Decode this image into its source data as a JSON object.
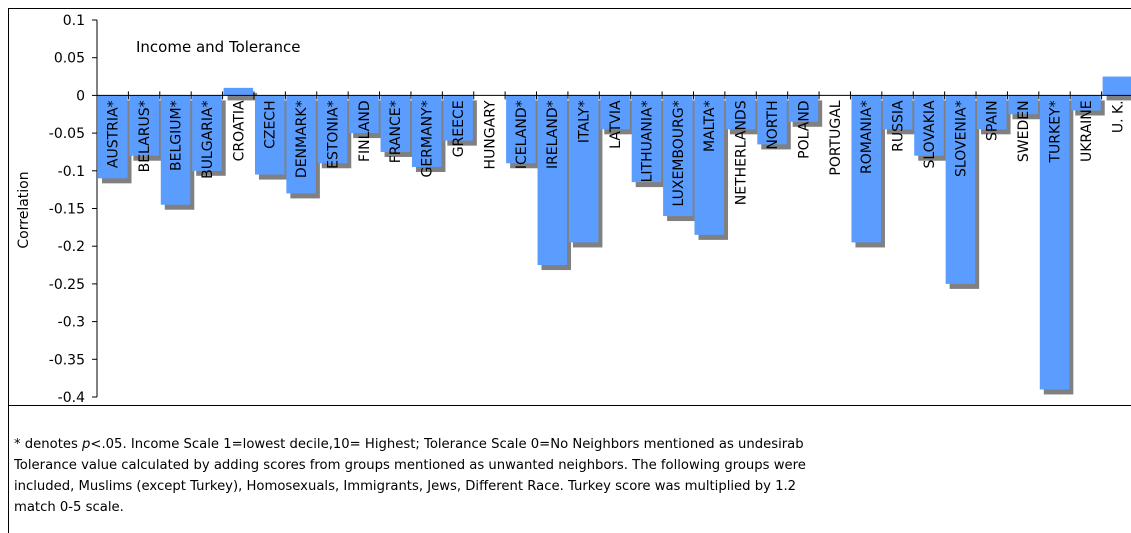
{
  "chart_data": {
    "type": "bar",
    "title": "Income and Tolerance",
    "y_label": "Correlation",
    "categories": [
      "AUSTRIA*",
      "BELARUS*",
      "BELGIUM*",
      "BULGARIA*",
      "CROATIA",
      "CZECH",
      "DENMARK*",
      "ESTONIA*",
      "FINLAND",
      "FRANCE*",
      "GERMANY*",
      "GREECE",
      "HUNGARY",
      "ICELAND*",
      "IRELAND*",
      "ITALY*",
      "LATVIA",
      "LITHUANIA*",
      "LUXEMBOURG*",
      "MALTA*",
      "NETHERLANDS",
      "NORTH",
      "POLAND",
      "PORTUGAL",
      "ROMANIA*",
      "RUSSIA",
      "SLOVAKIA",
      "SLOVENIA*",
      "SPAIN",
      "SWEDEN",
      "TURKEY*",
      "UKRAINE",
      "U. K."
    ],
    "values": [
      -0.11,
      -0.08,
      -0.145,
      -0.1,
      0.01,
      -0.105,
      -0.13,
      -0.09,
      -0.05,
      -0.075,
      -0.095,
      -0.06,
      0,
      -0.09,
      -0.225,
      -0.195,
      -0.045,
      -0.115,
      -0.16,
      -0.185,
      -0.045,
      -0.065,
      -0.035,
      0,
      -0.195,
      -0.045,
      -0.08,
      -0.25,
      -0.045,
      -0.025,
      -0.39,
      -0.02,
      0.025
    ],
    "color": "#5b9dff",
    "shadow_color": "#808080",
    "ylim": [
      -0.4,
      0.1
    ],
    "yticks": [
      0.1,
      0.05,
      0,
      -0.05,
      -0.1,
      -0.15,
      -0.2,
      -0.25,
      -0.3,
      -0.35,
      -0.4
    ],
    "note": {
      "lead": "* denotes ",
      "italic": "p",
      "line1": "<.05.  Income Scale 1=lowest decile,10= Highest; Tolerance Scale 0=No Neighbors mentioned as undesirab",
      "line2": "Tolerance value calculated by adding scores from groups mentioned as unwanted neighbors.  The following groups were",
      "line3": "included, Muslims (except Turkey), Homosexuals, Immigrants, Jews, Different Race.  Turkey score was multiplied by 1.2",
      "line4": "match 0-5 scale."
    }
  }
}
